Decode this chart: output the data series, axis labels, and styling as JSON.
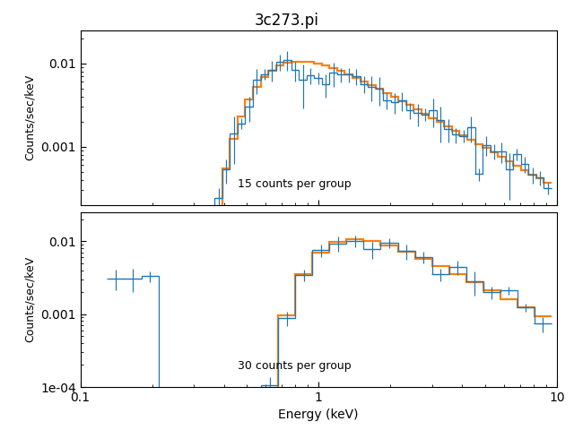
{
  "title": "3c273.pi",
  "xlabel": "Energy (keV)",
  "ylabel": "Counts/sec/keV",
  "xlim": [
    0.1,
    10
  ],
  "ylim1": [
    0.0002,
    0.025
  ],
  "ylim2": [
    0.0001,
    0.025
  ],
  "label1": "15 counts per group",
  "label2": "30 counts per group",
  "data_color": "#1f77b4",
  "model_color": "#ff7f0e",
  "figsize": [
    6.4,
    4.8
  ],
  "dpi": 100,
  "seed1": 12,
  "seed2": 7
}
